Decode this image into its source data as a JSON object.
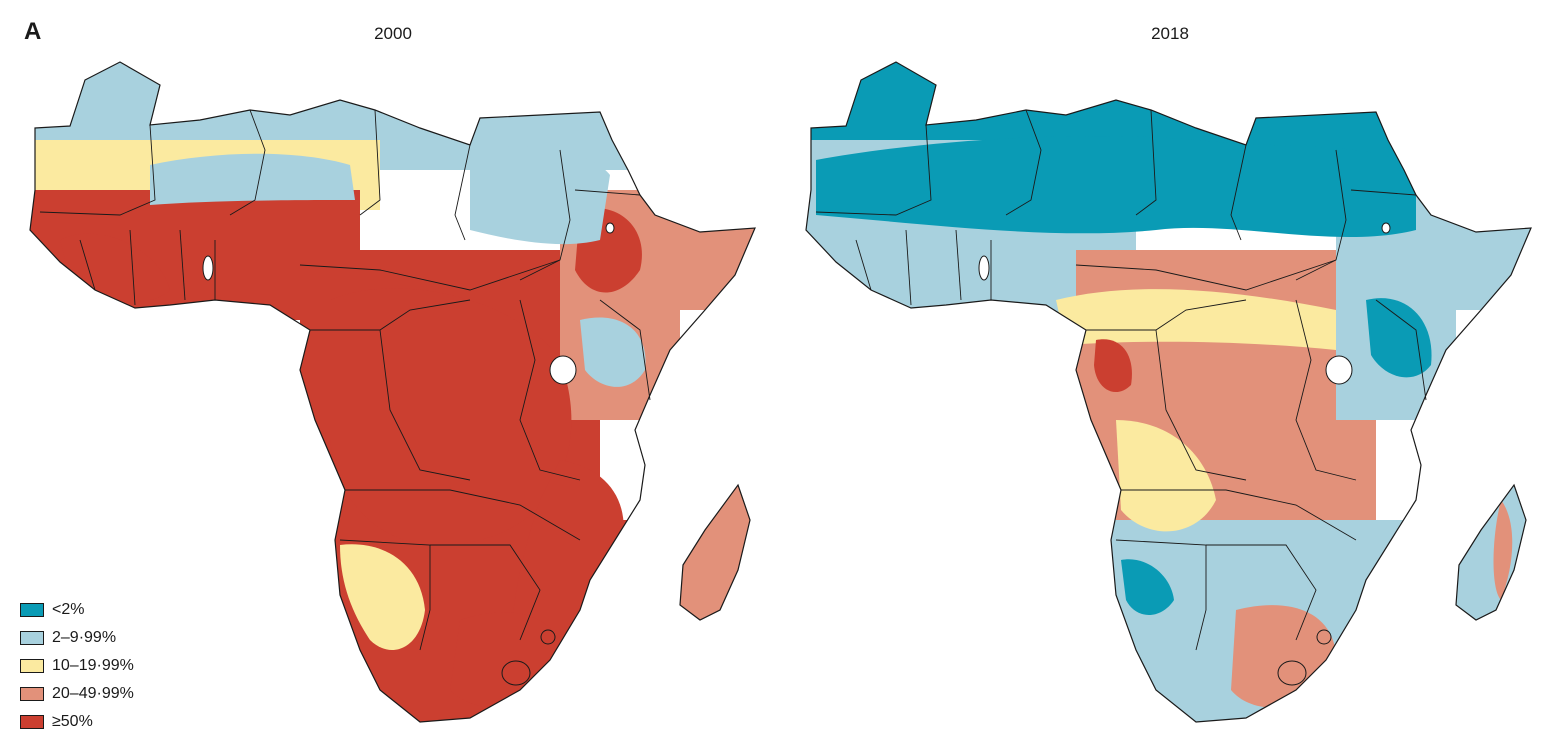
{
  "figure": {
    "panel_label": "A",
    "maps": [
      {
        "title": "2000"
      },
      {
        "title": "2018"
      }
    ]
  },
  "legend": {
    "items": [
      {
        "label": "<2%",
        "color": "#0a9bb5"
      },
      {
        "label": "2–9·99%",
        "color": "#a8d1de"
      },
      {
        "label": "10–19·99%",
        "color": "#fbeaa0"
      },
      {
        "label": "20–49·99%",
        "color": "#e2917a"
      },
      {
        "label": "≥50%",
        "color": "#cb3f30"
      }
    ]
  },
  "regions": {
    "left": [
      {
        "name": "sahara-north",
        "cat": 1
      },
      {
        "name": "sahel-west",
        "cat": 2
      },
      {
        "name": "west-africa-coast",
        "cat": 4
      },
      {
        "name": "central-africa",
        "cat": 4
      },
      {
        "name": "east-africa",
        "cat": 3
      },
      {
        "name": "horn-of-africa",
        "cat": 3
      },
      {
        "name": "southern-africa",
        "cat": 4
      },
      {
        "name": "madagascar",
        "cat": 3
      }
    ],
    "right": [
      {
        "name": "sahara-north",
        "cat": 0
      },
      {
        "name": "sahel-west",
        "cat": 1
      },
      {
        "name": "west-africa-coast",
        "cat": 1
      },
      {
        "name": "central-africa",
        "cat": 3
      },
      {
        "name": "east-africa",
        "cat": 1
      },
      {
        "name": "horn-of-africa",
        "cat": 1
      },
      {
        "name": "southern-africa",
        "cat": 1
      },
      {
        "name": "madagascar",
        "cat": 1
      }
    ]
  }
}
